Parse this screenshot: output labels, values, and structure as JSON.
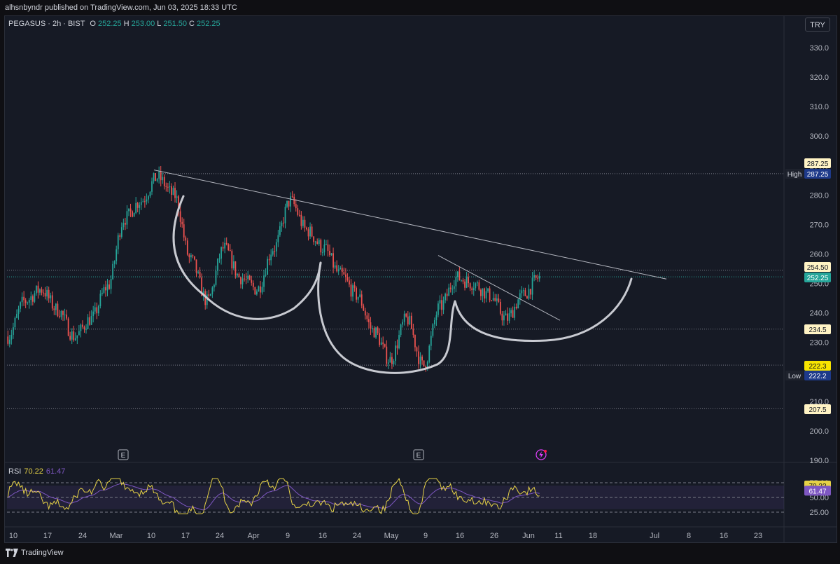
{
  "header": {
    "publisher": "alhsnbyndr published on TradingView.com, Jun 03, 2025 18:33 UTC"
  },
  "footer": {
    "brand": "TradingView"
  },
  "symbol": {
    "name": "PEGASUS · 2h · BIST",
    "open_label": "O",
    "open": "252.25",
    "high_label": "H",
    "high": "253.00",
    "low_label": "L",
    "low": "251.50",
    "close_label": "C",
    "close": "252.25"
  },
  "currency": "TRY",
  "colors": {
    "up": "#26a69a",
    "down": "#ef5350",
    "rsi": "#e6d246",
    "rsi_ma": "#7e57c2",
    "drawing": "#b2b5be"
  },
  "chart_data": [
    {
      "type": "candlestick",
      "title": "PEGASUS · 2h · BIST",
      "y_axis": {
        "ticks": [
          190,
          200,
          210,
          220,
          230,
          240,
          250,
          260,
          270,
          280,
          290,
          300,
          310,
          320,
          330
        ],
        "ylim": [
          188,
          336
        ],
        "position": "right"
      },
      "x_axis": {
        "ticks": [
          "10",
          "17",
          "24",
          "Mar",
          "10",
          "17",
          "24",
          "Apr",
          "9",
          "16",
          "24",
          "May",
          "9",
          "16",
          "26",
          "Jun",
          "11",
          "18",
          "Jul",
          "8",
          "16",
          "23"
        ]
      },
      "series": [
        {
          "name": "close",
          "values": [
            232,
            244,
            248,
            241,
            232,
            238,
            249,
            272,
            278,
            286,
            280,
            258,
            244,
            262,
            252,
            248,
            262,
            278,
            268,
            262,
            253,
            246,
            234,
            224,
            238,
            222,
            242,
            252,
            250,
            246,
            238,
            246,
            252
          ]
        }
      ],
      "price_labels": [
        {
          "value": "287.25",
          "label": ""
        },
        {
          "value": "287.25",
          "label": "High"
        },
        {
          "value": "254.50",
          "label": ""
        },
        {
          "value": "252.25",
          "label": ""
        },
        {
          "value": "234.5",
          "label": ""
        },
        {
          "value": "222.3",
          "label": ""
        },
        {
          "value": "222.2",
          "label": "Low"
        },
        {
          "value": "207.5",
          "label": ""
        }
      ],
      "event_markers": [
        "E",
        "E"
      ]
    },
    {
      "type": "line",
      "title": "RSI",
      "series": [
        {
          "name": "RSI",
          "value": "70.22"
        },
        {
          "name": "RSI-MA",
          "value": "61.47"
        }
      ],
      "y_axis": {
        "ticks": [
          25.0,
          50.0,
          75.0
        ]
      },
      "y_labels": [
        "75.00",
        "50.00",
        "25.00"
      ]
    }
  ]
}
